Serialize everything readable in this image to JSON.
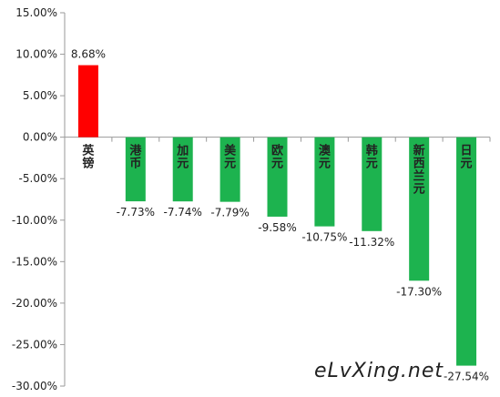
{
  "chart_data": {
    "type": "bar",
    "title": "",
    "xlabel": "",
    "ylabel": "",
    "categories": [
      "英镑",
      "港币",
      "加元",
      "美元",
      "欧元",
      "澳元",
      "韩元",
      "新西兰元",
      "日元"
    ],
    "values": [
      8.68,
      -7.73,
      -7.74,
      -7.79,
      -9.58,
      -10.75,
      -11.32,
      -17.3,
      -27.54
    ],
    "data_labels": [
      "8.68%",
      "-7.73%",
      "-7.74%",
      "-7.79%",
      "-9.58%",
      "-10.75%",
      "-11.32%",
      "-17.30%",
      "-27.54%"
    ],
    "ylim": [
      -30,
      15
    ],
    "y_ticks": [
      15,
      10,
      5,
      0,
      -5,
      -10,
      -15,
      -20,
      -25,
      -30
    ],
    "y_tick_labels": [
      "15.00%",
      "10.00%",
      "5.00%",
      "0.00%",
      "-5.00%",
      "-10.00%",
      "-15.00%",
      "-20.00%",
      "-25.00%",
      "-30.00%"
    ],
    "grid": false,
    "colors": {
      "positive": "#ff0000",
      "negative": "#1db34f",
      "axis": "#9a9a9a"
    }
  },
  "watermark": "eLvXing.net"
}
